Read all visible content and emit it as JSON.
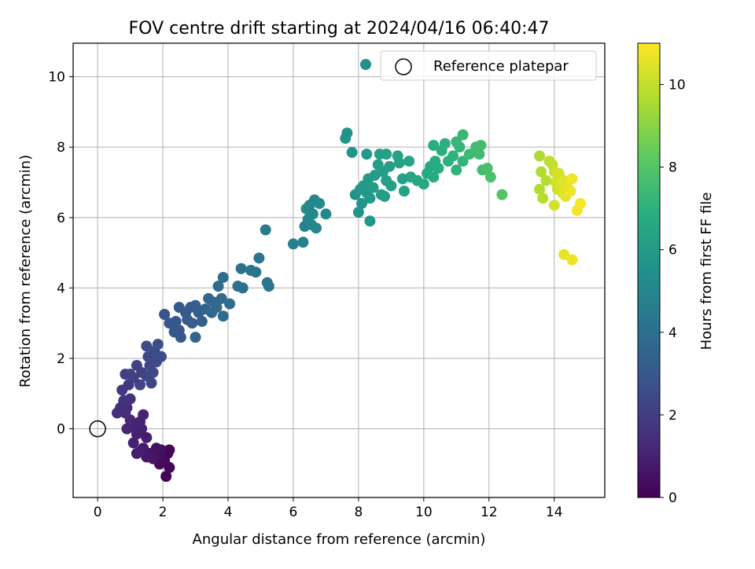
{
  "chart_data": {
    "type": "scatter",
    "title": "FOV centre drift starting at 2024/04/16 06:40:47",
    "xlabel": "Angular distance from reference (arcmin)",
    "ylabel": "Rotation from reference (arcmin)",
    "xlim": [
      -0.75,
      15.55
    ],
    "ylim": [
      -1.95,
      10.95
    ],
    "xticks": [
      0,
      2,
      4,
      6,
      8,
      10,
      12,
      14
    ],
    "yticks": [
      0,
      2,
      4,
      6,
      8,
      10
    ],
    "grid": true,
    "legend": {
      "placement": "top-right",
      "entries": [
        "",
        "Reference platepar"
      ]
    },
    "reference_point": {
      "x": 0,
      "y": 0,
      "label": "Reference platepar"
    },
    "colorbar": {
      "label": "Hours from first FF file",
      "min": 0,
      "max": 11,
      "ticks": [
        0,
        2,
        4,
        6,
        8,
        10
      ],
      "colormap": "viridis"
    },
    "series": [
      {
        "points": [
          {
            "x": 2.1,
            "y": -1.35,
            "t": 0.1
          },
          {
            "x": 2.2,
            "y": -1.1,
            "t": 0.2
          },
          {
            "x": 1.9,
            "y": -1.0,
            "t": 0.3
          },
          {
            "x": 2.05,
            "y": -0.9,
            "t": 0.3
          },
          {
            "x": 1.85,
            "y": -0.75,
            "t": 0.4
          },
          {
            "x": 2.15,
            "y": -0.7,
            "t": 0.2
          },
          {
            "x": 2.2,
            "y": -0.6,
            "t": 0.2
          },
          {
            "x": 1.95,
            "y": -0.6,
            "t": 0.4
          },
          {
            "x": 1.7,
            "y": -0.85,
            "t": 0.6
          },
          {
            "x": 1.6,
            "y": -0.7,
            "t": 0.6
          },
          {
            "x": 1.5,
            "y": -0.8,
            "t": 0.7
          },
          {
            "x": 1.8,
            "y": -0.55,
            "t": 0.5
          },
          {
            "x": 1.4,
            "y": -0.55,
            "t": 0.8
          },
          {
            "x": 1.3,
            "y": -0.65,
            "t": 0.9
          },
          {
            "x": 1.2,
            "y": -0.7,
            "t": 0.9
          },
          {
            "x": 1.1,
            "y": -0.4,
            "t": 1.0
          },
          {
            "x": 1.2,
            "y": -0.15,
            "t": 1.0
          },
          {
            "x": 1.35,
            "y": 0.0,
            "t": 1.0
          },
          {
            "x": 1.1,
            "y": 0.05,
            "t": 1.1
          },
          {
            "x": 1.5,
            "y": -0.25,
            "t": 0.9
          },
          {
            "x": 0.9,
            "y": 0.0,
            "t": 1.2
          },
          {
            "x": 1.0,
            "y": 0.25,
            "t": 1.2
          },
          {
            "x": 1.3,
            "y": 0.2,
            "t": 1.1
          },
          {
            "x": 1.4,
            "y": 0.4,
            "t": 1.1
          },
          {
            "x": 0.85,
            "y": 0.45,
            "t": 1.4
          },
          {
            "x": 0.7,
            "y": 0.6,
            "t": 1.5
          },
          {
            "x": 0.6,
            "y": 0.45,
            "t": 1.5
          },
          {
            "x": 0.8,
            "y": 0.8,
            "t": 1.6
          },
          {
            "x": 0.9,
            "y": 0.6,
            "t": 1.4
          },
          {
            "x": 1.0,
            "y": 0.85,
            "t": 1.6
          },
          {
            "x": 0.75,
            "y": 1.1,
            "t": 1.8
          },
          {
            "x": 0.95,
            "y": 1.25,
            "t": 1.8
          },
          {
            "x": 0.85,
            "y": 1.55,
            "t": 2.0
          },
          {
            "x": 1.1,
            "y": 1.45,
            "t": 2.0
          },
          {
            "x": 1.2,
            "y": 1.8,
            "t": 2.2
          },
          {
            "x": 1.0,
            "y": 1.55,
            "t": 2.1
          },
          {
            "x": 1.35,
            "y": 1.6,
            "t": 2.1
          },
          {
            "x": 1.3,
            "y": 1.25,
            "t": 2.2
          },
          {
            "x": 1.5,
            "y": 1.5,
            "t": 2.3
          },
          {
            "x": 1.6,
            "y": 1.8,
            "t": 2.3
          },
          {
            "x": 1.55,
            "y": 2.05,
            "t": 2.4
          },
          {
            "x": 1.5,
            "y": 2.35,
            "t": 2.5
          },
          {
            "x": 1.75,
            "y": 2.2,
            "t": 2.5
          },
          {
            "x": 1.85,
            "y": 2.4,
            "t": 2.6
          },
          {
            "x": 1.8,
            "y": 1.9,
            "t": 2.4
          },
          {
            "x": 1.95,
            "y": 2.05,
            "t": 2.5
          },
          {
            "x": 1.7,
            "y": 1.6,
            "t": 2.4
          },
          {
            "x": 1.65,
            "y": 1.3,
            "t": 2.3
          },
          {
            "x": 2.05,
            "y": 3.25,
            "t": 2.8
          },
          {
            "x": 2.2,
            "y": 3.0,
            "t": 2.9
          },
          {
            "x": 2.35,
            "y": 2.75,
            "t": 3.0
          },
          {
            "x": 2.5,
            "y": 2.8,
            "t": 3.0
          },
          {
            "x": 2.55,
            "y": 2.6,
            "t": 3.0
          },
          {
            "x": 2.4,
            "y": 3.05,
            "t": 3.0
          },
          {
            "x": 2.5,
            "y": 3.45,
            "t": 3.1
          },
          {
            "x": 2.7,
            "y": 3.3,
            "t": 3.1
          },
          {
            "x": 2.85,
            "y": 3.45,
            "t": 3.2
          },
          {
            "x": 2.75,
            "y": 3.1,
            "t": 3.2
          },
          {
            "x": 2.9,
            "y": 3.0,
            "t": 3.3
          },
          {
            "x": 3.0,
            "y": 3.5,
            "t": 3.3
          },
          {
            "x": 3.1,
            "y": 3.3,
            "t": 3.4
          },
          {
            "x": 3.2,
            "y": 3.05,
            "t": 3.4
          },
          {
            "x": 3.0,
            "y": 2.6,
            "t": 3.5
          },
          {
            "x": 3.3,
            "y": 3.4,
            "t": 3.5
          },
          {
            "x": 3.4,
            "y": 3.7,
            "t": 3.6
          },
          {
            "x": 3.55,
            "y": 3.6,
            "t": 3.6
          },
          {
            "x": 3.65,
            "y": 3.45,
            "t": 3.7
          },
          {
            "x": 3.5,
            "y": 3.3,
            "t": 3.7
          },
          {
            "x": 3.7,
            "y": 4.05,
            "t": 3.8
          },
          {
            "x": 3.85,
            "y": 4.3,
            "t": 3.9
          },
          {
            "x": 3.8,
            "y": 3.7,
            "t": 3.8
          },
          {
            "x": 3.85,
            "y": 3.2,
            "t": 3.8
          },
          {
            "x": 4.05,
            "y": 3.55,
            "t": 3.9
          },
          {
            "x": 4.3,
            "y": 4.05,
            "t": 4.0
          },
          {
            "x": 4.45,
            "y": 4.0,
            "t": 4.0
          },
          {
            "x": 4.4,
            "y": 4.55,
            "t": 4.1
          },
          {
            "x": 4.7,
            "y": 4.5,
            "t": 4.2
          },
          {
            "x": 4.85,
            "y": 4.45,
            "t": 4.2
          },
          {
            "x": 4.95,
            "y": 4.85,
            "t": 4.3
          },
          {
            "x": 5.2,
            "y": 4.15,
            "t": 4.3
          },
          {
            "x": 5.25,
            "y": 4.05,
            "t": 4.3
          },
          {
            "x": 5.15,
            "y": 5.65,
            "t": 4.5
          },
          {
            "x": 6.0,
            "y": 5.25,
            "t": 4.8
          },
          {
            "x": 6.3,
            "y": 5.3,
            "t": 4.8
          },
          {
            "x": 6.35,
            "y": 5.75,
            "t": 4.9
          },
          {
            "x": 6.45,
            "y": 5.95,
            "t": 5.0
          },
          {
            "x": 6.55,
            "y": 5.8,
            "t": 5.0
          },
          {
            "x": 6.7,
            "y": 5.7,
            "t": 5.0
          },
          {
            "x": 6.4,
            "y": 6.25,
            "t": 5.1
          },
          {
            "x": 6.5,
            "y": 6.35,
            "t": 5.1
          },
          {
            "x": 6.65,
            "y": 6.5,
            "t": 5.1
          },
          {
            "x": 6.8,
            "y": 6.4,
            "t": 5.2
          },
          {
            "x": 7.0,
            "y": 6.1,
            "t": 5.2
          },
          {
            "x": 6.6,
            "y": 6.1,
            "t": 5.2
          },
          {
            "x": 7.6,
            "y": 8.25,
            "t": 5.6
          },
          {
            "x": 7.65,
            "y": 8.4,
            "t": 5.6
          },
          {
            "x": 7.8,
            "y": 7.85,
            "t": 5.7
          },
          {
            "x": 8.25,
            "y": 7.8,
            "t": 5.8
          },
          {
            "x": 7.9,
            "y": 6.65,
            "t": 5.6
          },
          {
            "x": 8.0,
            "y": 6.15,
            "t": 5.7
          },
          {
            "x": 8.1,
            "y": 6.4,
            "t": 5.7
          },
          {
            "x": 8.05,
            "y": 6.8,
            "t": 5.8
          },
          {
            "x": 8.15,
            "y": 6.9,
            "t": 5.8
          },
          {
            "x": 8.25,
            "y": 6.7,
            "t": 5.9
          },
          {
            "x": 8.35,
            "y": 6.55,
            "t": 5.9
          },
          {
            "x": 8.3,
            "y": 7.1,
            "t": 5.9
          },
          {
            "x": 8.35,
            "y": 5.9,
            "t": 5.8
          },
          {
            "x": 8.45,
            "y": 6.85,
            "t": 6.0
          },
          {
            "x": 8.5,
            "y": 7.2,
            "t": 6.0
          },
          {
            "x": 8.6,
            "y": 7.5,
            "t": 6.1
          },
          {
            "x": 8.65,
            "y": 7.8,
            "t": 6.1
          },
          {
            "x": 8.75,
            "y": 7.3,
            "t": 6.1
          },
          {
            "x": 8.85,
            "y": 7.05,
            "t": 6.2
          },
          {
            "x": 8.7,
            "y": 6.65,
            "t": 6.0
          },
          {
            "x": 8.85,
            "y": 7.8,
            "t": 6.2
          },
          {
            "x": 8.95,
            "y": 7.45,
            "t": 6.2
          },
          {
            "x": 9.0,
            "y": 6.9,
            "t": 6.2
          },
          {
            "x": 9.2,
            "y": 7.75,
            "t": 6.3
          },
          {
            "x": 9.25,
            "y": 7.55,
            "t": 6.3
          },
          {
            "x": 9.35,
            "y": 7.1,
            "t": 6.3
          },
          {
            "x": 9.4,
            "y": 6.75,
            "t": 6.3
          },
          {
            "x": 8.8,
            "y": 6.6,
            "t": 6.1
          },
          {
            "x": 9.55,
            "y": 7.6,
            "t": 6.4
          },
          {
            "x": 9.6,
            "y": 7.15,
            "t": 6.4
          },
          {
            "x": 9.8,
            "y": 7.05,
            "t": 6.5
          },
          {
            "x": 10.0,
            "y": 6.95,
            "t": 6.6
          },
          {
            "x": 10.1,
            "y": 7.25,
            "t": 6.7
          },
          {
            "x": 10.2,
            "y": 7.45,
            "t": 6.7
          },
          {
            "x": 10.3,
            "y": 7.15,
            "t": 6.7
          },
          {
            "x": 10.35,
            "y": 7.6,
            "t": 6.8
          },
          {
            "x": 10.45,
            "y": 7.4,
            "t": 6.8
          },
          {
            "x": 10.3,
            "y": 8.05,
            "t": 6.9
          },
          {
            "x": 10.55,
            "y": 7.9,
            "t": 6.9
          },
          {
            "x": 10.65,
            "y": 8.1,
            "t": 7.0
          },
          {
            "x": 10.75,
            "y": 7.6,
            "t": 7.0
          },
          {
            "x": 10.9,
            "y": 7.75,
            "t": 7.1
          },
          {
            "x": 11.0,
            "y": 7.35,
            "t": 7.1
          },
          {
            "x": 11.1,
            "y": 8.0,
            "t": 7.2
          },
          {
            "x": 11.2,
            "y": 7.6,
            "t": 7.2
          },
          {
            "x": 11.0,
            "y": 8.15,
            "t": 7.3
          },
          {
            "x": 11.2,
            "y": 8.35,
            "t": 7.3
          },
          {
            "x": 11.4,
            "y": 7.8,
            "t": 7.4
          },
          {
            "x": 11.6,
            "y": 8.0,
            "t": 7.5
          },
          {
            "x": 11.7,
            "y": 7.8,
            "t": 7.5
          },
          {
            "x": 11.75,
            "y": 8.05,
            "t": 7.6
          },
          {
            "x": 11.8,
            "y": 7.35,
            "t": 7.6
          },
          {
            "x": 11.95,
            "y": 7.4,
            "t": 7.7
          },
          {
            "x": 12.05,
            "y": 7.15,
            "t": 7.8
          },
          {
            "x": 12.4,
            "y": 6.65,
            "t": 8.0
          },
          {
            "x": 13.55,
            "y": 7.75,
            "t": 9.6
          },
          {
            "x": 13.6,
            "y": 7.3,
            "t": 9.7
          },
          {
            "x": 13.55,
            "y": 6.8,
            "t": 9.7
          },
          {
            "x": 13.65,
            "y": 6.55,
            "t": 9.8
          },
          {
            "x": 13.75,
            "y": 7.05,
            "t": 9.8
          },
          {
            "x": 13.85,
            "y": 7.6,
            "t": 9.9
          },
          {
            "x": 13.95,
            "y": 7.5,
            "t": 10.0
          },
          {
            "x": 14.0,
            "y": 7.3,
            "t": 10.1
          },
          {
            "x": 14.05,
            "y": 7.0,
            "t": 10.2
          },
          {
            "x": 14.1,
            "y": 6.8,
            "t": 10.2
          },
          {
            "x": 14.15,
            "y": 7.25,
            "t": 10.3
          },
          {
            "x": 14.0,
            "y": 6.35,
            "t": 10.3
          },
          {
            "x": 14.2,
            "y": 6.95,
            "t": 10.4
          },
          {
            "x": 14.25,
            "y": 6.7,
            "t": 10.5
          },
          {
            "x": 14.3,
            "y": 7.05,
            "t": 10.5
          },
          {
            "x": 14.35,
            "y": 6.6,
            "t": 10.6
          },
          {
            "x": 14.4,
            "y": 6.85,
            "t": 10.6
          },
          {
            "x": 14.5,
            "y": 6.75,
            "t": 10.7
          },
          {
            "x": 14.55,
            "y": 7.1,
            "t": 10.8
          },
          {
            "x": 14.7,
            "y": 6.2,
            "t": 10.8
          },
          {
            "x": 14.8,
            "y": 6.4,
            "t": 10.9
          },
          {
            "x": 14.3,
            "y": 4.95,
            "t": 10.6
          },
          {
            "x": 14.55,
            "y": 4.8,
            "t": 10.7
          }
        ]
      }
    ]
  }
}
